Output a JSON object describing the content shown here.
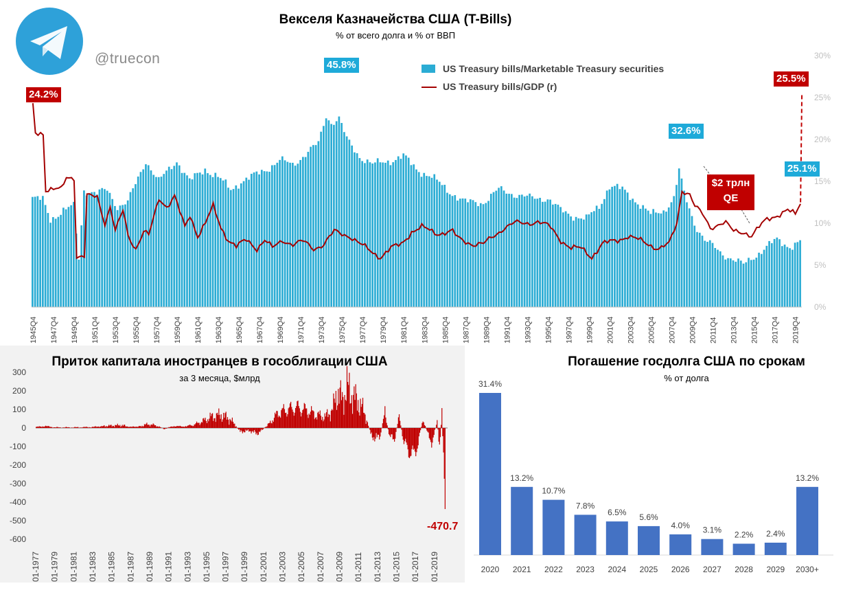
{
  "header": {
    "handle": "@truecon",
    "logo": "telegram-logo-icon",
    "colors": {
      "logo_bg": "#2ea1d9",
      "logo_plane": "#ffffff"
    }
  },
  "chart_data": [
    {
      "id": "tbills",
      "type": "bar+line",
      "title": "Векселя Казначейства США (T-Bills)",
      "subtitle": "% от всего долга и % от ВВП",
      "legend": [
        "US Treasury bills/Marketable Treasury securities",
        "US Treasury bills/GDP (r)"
      ],
      "x_tick_labels": [
        "1945Q4",
        "1947Q4",
        "1949Q4",
        "1951Q4",
        "1953Q4",
        "1955Q4",
        "1957Q4",
        "1959Q4",
        "1961Q4",
        "1963Q4",
        "1965Q4",
        "1967Q4",
        "1969Q4",
        "1971Q4",
        "1973Q4",
        "1975Q4",
        "1977Q4",
        "1979Q4",
        "1981Q4",
        "1983Q4",
        "1985Q4",
        "1987Q4",
        "1989Q4",
        "1991Q4",
        "1993Q4",
        "1995Q4",
        "1997Q4",
        "1999Q4",
        "2001Q4",
        "2003Q4",
        "2005Q4",
        "2007Q4",
        "2009Q4",
        "2011Q4",
        "2013Q4",
        "2015Q4",
        "2017Q4",
        "2019Q4"
      ],
      "right_axis": {
        "labels": [
          "0%",
          "5%",
          "10%",
          "15%",
          "20%",
          "25%",
          "30%"
        ],
        "range": [
          0,
          30
        ]
      },
      "bar_scale_max": 60,
      "bar_keypoints": [
        [
          1945.75,
          26
        ],
        [
          1946.75,
          25.5
        ],
        [
          1947.5,
          21
        ],
        [
          1948.75,
          23
        ],
        [
          1949.75,
          24
        ],
        [
          1950.25,
          11.5
        ],
        [
          1950.75,
          28
        ],
        [
          1952.0,
          27
        ],
        [
          1953.0,
          28
        ],
        [
          1954.0,
          24
        ],
        [
          1955.0,
          25
        ],
        [
          1956.75,
          35
        ],
        [
          1958.0,
          30
        ],
        [
          1959.75,
          35
        ],
        [
          1961.0,
          30
        ],
        [
          1962.5,
          33
        ],
        [
          1963.75,
          31
        ],
        [
          1965.0,
          28
        ],
        [
          1966.0,
          30
        ],
        [
          1967.0,
          31
        ],
        [
          1968.5,
          33
        ],
        [
          1969.75,
          35
        ],
        [
          1971.0,
          34
        ],
        [
          1972.5,
          37
        ],
        [
          1973.5,
          39
        ],
        [
          1974.25,
          45.8
        ],
        [
          1974.75,
          44
        ],
        [
          1975.5,
          45
        ],
        [
          1976.25,
          40
        ],
        [
          1977.5,
          36
        ],
        [
          1978.75,
          34
        ],
        [
          1980.5,
          35
        ],
        [
          1981.75,
          36
        ],
        [
          1983.0,
          33
        ],
        [
          1984.5,
          31
        ],
        [
          1986.0,
          28
        ],
        [
          1987.75,
          25
        ],
        [
          1989.5,
          25
        ],
        [
          1991.0,
          28
        ],
        [
          1992.5,
          27
        ],
        [
          1994.0,
          26
        ],
        [
          1995.75,
          26
        ],
        [
          1997.0,
          23
        ],
        [
          1998.0,
          22
        ],
        [
          1999.5,
          21
        ],
        [
          2000.75,
          24
        ],
        [
          2001.75,
          29
        ],
        [
          2003.0,
          28
        ],
        [
          2004.5,
          25
        ],
        [
          2005.75,
          22
        ],
        [
          2007.0,
          23
        ],
        [
          2008.0,
          26
        ],
        [
          2008.5,
          32.6
        ],
        [
          2009.0,
          27
        ],
        [
          2010.0,
          20
        ],
        [
          2011.0,
          16
        ],
        [
          2012.5,
          13
        ],
        [
          2013.75,
          11.5
        ],
        [
          2014.75,
          10
        ],
        [
          2015.75,
          12
        ],
        [
          2016.75,
          14
        ],
        [
          2018.0,
          16
        ],
        [
          2019.25,
          14.5
        ],
        [
          2020.25,
          15.5
        ]
      ],
      "bar_peak_labels": [
        "45.8%",
        "32.6%",
        "25.1%"
      ],
      "gdp_keypoints": [
        [
          1945.75,
          24.2
        ],
        [
          1946.0,
          20.8
        ],
        [
          1946.75,
          20.8
        ],
        [
          1947.0,
          14
        ],
        [
          1948.5,
          14
        ],
        [
          1949.0,
          15.5
        ],
        [
          1949.75,
          15.5
        ],
        [
          1950.0,
          6
        ],
        [
          1950.75,
          6
        ],
        [
          1951.0,
          13.2
        ],
        [
          1952.0,
          13.2
        ],
        [
          1952.75,
          10
        ],
        [
          1953.25,
          12
        ],
        [
          1953.75,
          9
        ],
        [
          1954.5,
          11.5
        ],
        [
          1955.0,
          8.5
        ],
        [
          1955.75,
          7
        ],
        [
          1956.5,
          9
        ],
        [
          1957.0,
          8.5
        ],
        [
          1958.0,
          13
        ],
        [
          1958.75,
          12
        ],
        [
          1959.5,
          13.2
        ],
        [
          1960.5,
          9.5
        ],
        [
          1961.0,
          11
        ],
        [
          1961.75,
          8.5
        ],
        [
          1962.5,
          10
        ],
        [
          1963.25,
          12
        ],
        [
          1964.0,
          9.5
        ],
        [
          1964.75,
          8
        ],
        [
          1965.5,
          7.2
        ],
        [
          1966.5,
          8
        ],
        [
          1967.5,
          7
        ],
        [
          1968.25,
          8
        ],
        [
          1969.0,
          7
        ],
        [
          1970.0,
          8
        ],
        [
          1971.0,
          7.5
        ],
        [
          1972.0,
          7.8
        ],
        [
          1973.0,
          7
        ],
        [
          1974.0,
          7.5
        ],
        [
          1975.0,
          9
        ],
        [
          1976.5,
          8.5
        ],
        [
          1977.5,
          7.5
        ],
        [
          1978.75,
          6.5
        ],
        [
          1979.5,
          6
        ],
        [
          1980.5,
          7
        ],
        [
          1981.5,
          7.5
        ],
        [
          1982.5,
          9
        ],
        [
          1983.5,
          9.5
        ],
        [
          1985.0,
          8.8
        ],
        [
          1986.5,
          9
        ],
        [
          1987.0,
          8.2
        ],
        [
          1988.5,
          7.5
        ],
        [
          1989.5,
          7.5
        ],
        [
          1990.5,
          8.5
        ],
        [
          1991.5,
          9.5
        ],
        [
          1992.5,
          10
        ],
        [
          1993.5,
          10
        ],
        [
          1994.75,
          10.2
        ],
        [
          1996.0,
          9.5
        ],
        [
          1997.0,
          8
        ],
        [
          1998.0,
          7
        ],
        [
          1999.0,
          7
        ],
        [
          2000.0,
          6
        ],
        [
          2001.0,
          7.5
        ],
        [
          2002.5,
          8
        ],
        [
          2003.5,
          8.5
        ],
        [
          2004.5,
          8
        ],
        [
          2005.5,
          7.5
        ],
        [
          2006.5,
          7
        ],
        [
          2007.5,
          7.5
        ],
        [
          2008.25,
          10
        ],
        [
          2008.75,
          14
        ],
        [
          2009.5,
          13.5
        ],
        [
          2010.0,
          12
        ],
        [
          2010.75,
          11
        ],
        [
          2011.5,
          9.5
        ],
        [
          2012.5,
          10
        ],
        [
          2013.0,
          10
        ],
        [
          2013.75,
          9
        ],
        [
          2014.75,
          9
        ],
        [
          2015.5,
          8.5
        ],
        [
          2016.25,
          9.5
        ],
        [
          2017.0,
          10.5
        ],
        [
          2018.0,
          11
        ],
        [
          2019.0,
          11.5
        ],
        [
          2019.75,
          11
        ],
        [
          2020.25,
          12.5
        ]
      ],
      "gdp_projection": [
        [
          2020.25,
          12.5
        ],
        [
          2020.5,
          25.5
        ]
      ],
      "gdp_labels": [
        "24.2%",
        "25.5%"
      ],
      "annotation": {
        "line1": "$2 трлн",
        "line2": "QE"
      },
      "colors": {
        "bars": "#2bacd4",
        "line": "#a40000",
        "label_blue": "#1eaad9",
        "label_red": "#c00000",
        "axis_text": "#bfbfbf"
      }
    },
    {
      "id": "flows",
      "type": "bar",
      "title": "Приток капитала иностранцев в гособлигации США",
      "subtitle": "за 3 месяца, $млрд",
      "y_tick_labels": [
        "300",
        "200",
        "100",
        "0",
        "-100",
        "-200",
        "-300",
        "-400",
        "-500",
        "-600"
      ],
      "ylim": [
        -600,
        300
      ],
      "x_tick_labels": [
        "01-1977",
        "01-1979",
        "01-1981",
        "01-1983",
        "01-1985",
        "01-1987",
        "01-1989",
        "01-1991",
        "01-1993",
        "01-1995",
        "01-1997",
        "01-1999",
        "01-2001",
        "01-2003",
        "01-2005",
        "01-2007",
        "01-2009",
        "01-2011",
        "01-2013",
        "01-2015",
        "01-2017",
        "01-2019"
      ],
      "keypoints": [
        [
          1977.0,
          5
        ],
        [
          1978.0,
          10
        ],
        [
          1979.0,
          3
        ],
        [
          1981.0,
          3
        ],
        [
          1983.0,
          5
        ],
        [
          1984.0,
          10
        ],
        [
          1986.0,
          15
        ],
        [
          1987.0,
          5
        ],
        [
          1988.0,
          10
        ],
        [
          1988.75,
          20
        ],
        [
          1989.5,
          15
        ],
        [
          1990.5,
          -5
        ],
        [
          1991.5,
          10
        ],
        [
          1992.5,
          8
        ],
        [
          1993.5,
          15
        ],
        [
          1994.5,
          35
        ],
        [
          1995.5,
          60
        ],
        [
          1996.5,
          70
        ],
        [
          1997.5,
          45
        ],
        [
          1998.5,
          -20
        ],
        [
          1999.5,
          -15
        ],
        [
          2000.25,
          -30
        ],
        [
          2000.75,
          -15
        ],
        [
          2001.5,
          20
        ],
        [
          2002.5,
          80
        ],
        [
          2003.5,
          100
        ],
        [
          2004.5,
          110
        ],
        [
          2005.5,
          95
        ],
        [
          2006.5,
          70
        ],
        [
          2007.5,
          60
        ],
        [
          2008.25,
          100
        ],
        [
          2008.75,
          200
        ],
        [
          2009.25,
          150
        ],
        [
          2009.75,
          220
        ],
        [
          2010.25,
          180
        ],
        [
          2010.75,
          150
        ],
        [
          2011.25,
          120
        ],
        [
          2011.75,
          60
        ],
        [
          2012.25,
          -30
        ],
        [
          2012.75,
          -60
        ],
        [
          2013.25,
          -40
        ],
        [
          2013.75,
          80
        ],
        [
          2014.25,
          -50
        ],
        [
          2014.75,
          -60
        ],
        [
          2015.25,
          60
        ],
        [
          2015.75,
          -80
        ],
        [
          2016.25,
          -120
        ],
        [
          2016.75,
          -150
        ],
        [
          2017.25,
          -80
        ],
        [
          2017.75,
          50
        ],
        [
          2018.25,
          -30
        ],
        [
          2018.75,
          -80
        ],
        [
          2019.25,
          40
        ],
        [
          2019.5,
          -100
        ],
        [
          2019.75,
          70
        ],
        [
          2020.0,
          -270
        ],
        [
          2020.1,
          -470.7
        ]
      ],
      "min_label": "-470.7",
      "colors": {
        "bars": "#c00000",
        "min_label": "#c00000",
        "axis_text": "#404040"
      }
    },
    {
      "id": "maturity",
      "type": "bar",
      "title": "Погашение госдолга США по срокам",
      "subtitle": "% от долга",
      "categories": [
        "2020",
        "2021",
        "2022",
        "2023",
        "2024",
        "2025",
        "2026",
        "2027",
        "2028",
        "2029",
        "2030+"
      ],
      "values": [
        31.4,
        13.2,
        10.7,
        7.8,
        6.5,
        5.6,
        4.0,
        3.1,
        2.2,
        2.4,
        13.2
      ],
      "data_labels": [
        "31.4%",
        "13.2%",
        "10.7%",
        "7.8%",
        "6.5%",
        "5.6%",
        "4.0%",
        "3.1%",
        "2.2%",
        "2.4%",
        "13.2%"
      ],
      "colors": {
        "bars": "#4472c4",
        "label_text": "#404040"
      }
    }
  ]
}
